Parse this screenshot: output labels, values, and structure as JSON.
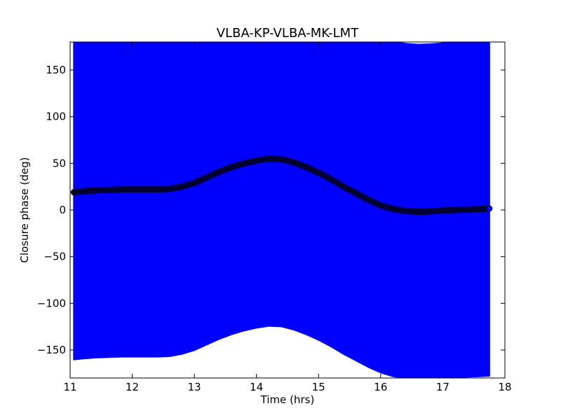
{
  "chart_data": {
    "type": "scatter",
    "title": "VLBA-KP-VLBA-MK-LMT",
    "xlabel": "Time (hrs)",
    "ylabel": "Closure phase (deg)",
    "xlim": [
      11,
      18
    ],
    "ylim": [
      -180,
      180
    ],
    "xticks": [
      11,
      12,
      13,
      14,
      15,
      16,
      17,
      18
    ],
    "yticks": [
      150,
      100,
      50,
      0,
      -50,
      -100,
      -150
    ],
    "xtick_labels": [
      "11",
      "12",
      "13",
      "14",
      "15",
      "16",
      "17",
      "18"
    ],
    "ytick_labels": [
      "150",
      "100",
      "50",
      "0",
      "−50",
      "−100",
      "−150"
    ],
    "grid": false,
    "legend": "none",
    "colors": {
      "error_bars": "#0000ff",
      "marker_face": "#000033",
      "marker_edge": "#0000ff"
    },
    "series": [
      {
        "x": [
          11.06,
          11.2,
          11.4,
          11.6,
          11.8,
          12.0,
          12.2,
          12.4,
          12.6,
          12.8,
          13.0,
          13.2,
          13.4,
          13.6,
          13.8,
          14.0,
          14.2,
          14.4,
          14.6,
          14.8,
          15.0,
          15.2,
          15.4,
          15.6,
          15.8,
          16.0,
          16.2,
          16.4,
          16.6,
          16.8,
          17.0,
          17.2,
          17.4,
          17.6,
          17.75
        ],
        "y": [
          19,
          20,
          21,
          21.5,
          22,
          22,
          22,
          22,
          22.5,
          25,
          29,
          35,
          41,
          46,
          50,
          53,
          55,
          54.5,
          51,
          46,
          40,
          33,
          25,
          18,
          11,
          5,
          1,
          -1,
          -2,
          -1.5,
          -0.5,
          0,
          0.5,
          1,
          1.5
        ],
        "error": 180
      }
    ]
  }
}
